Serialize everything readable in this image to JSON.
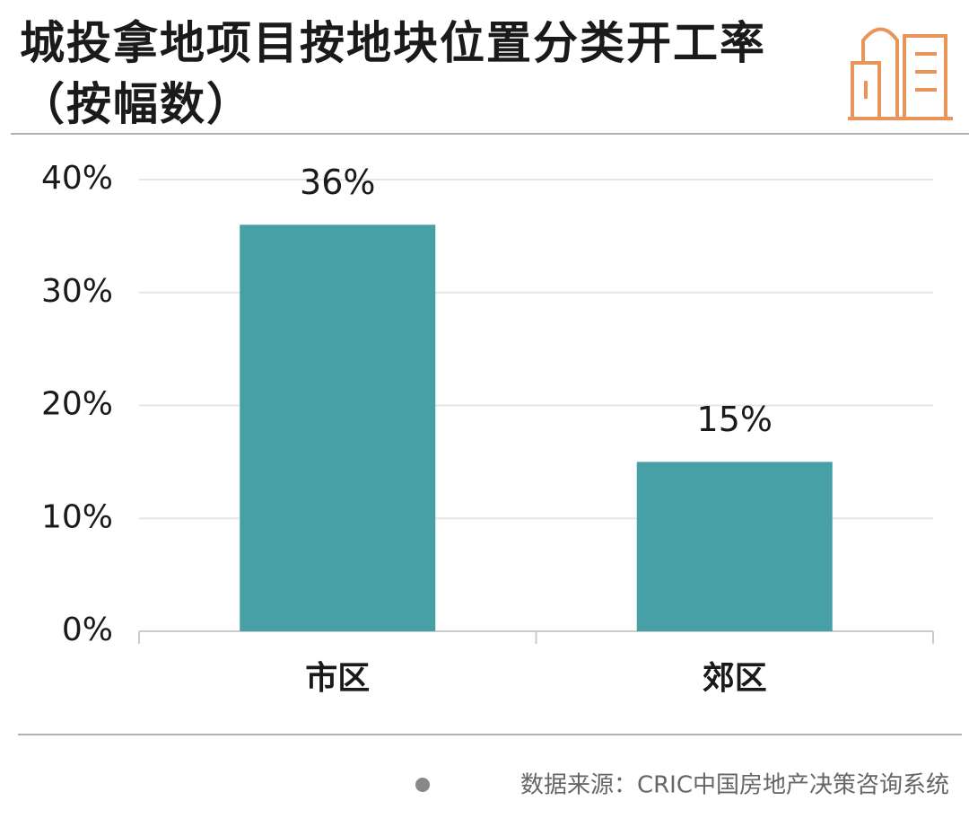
{
  "chart_data": {
    "type": "bar",
    "title": "城投拿地项目按地块位置分类开工率（按幅数）",
    "categories": [
      "市区",
      "郊区"
    ],
    "values": [
      36,
      15
    ],
    "value_labels": [
      "36%",
      "15%"
    ],
    "color": "#46a0a5",
    "ylim": [
      0,
      40
    ],
    "yticks": [
      {
        "value": 0,
        "label": "0%"
      },
      {
        "value": 10,
        "label": "10%"
      },
      {
        "value": 20,
        "label": "20%"
      },
      {
        "value": 30,
        "label": "30%"
      },
      {
        "value": 40,
        "label": "40%"
      }
    ],
    "grid": true,
    "source": "数据来源：CRIC中国房地产决策咨询系统"
  }
}
